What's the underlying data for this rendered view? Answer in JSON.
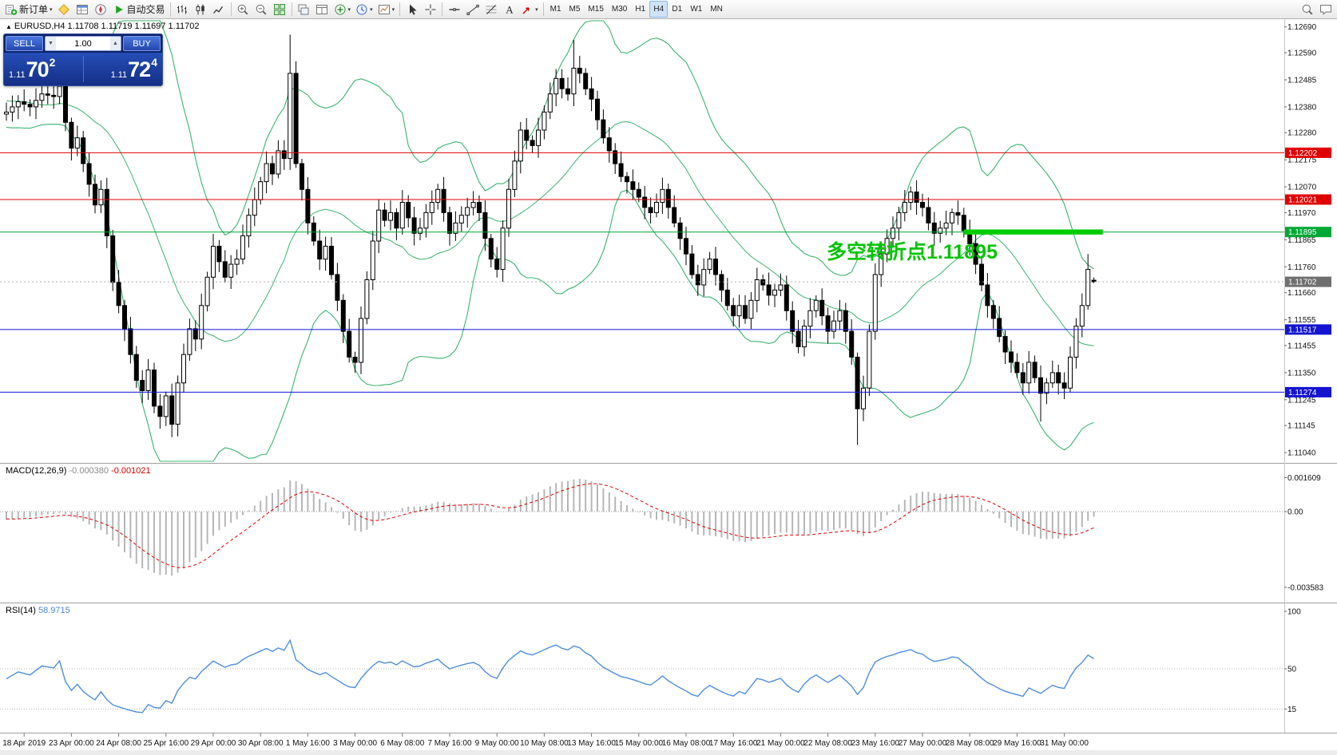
{
  "window": {
    "bg": "#ffffff",
    "toolbar_bg": "#f0f0f0",
    "bottom_strip": "#ececec"
  },
  "toolbar": {
    "groups": [
      {
        "items": [
          {
            "name": "new-order",
            "icon": "new-order",
            "label": "新订单",
            "dropdown": true
          },
          {
            "name": "metaeditor",
            "icon": "metaeditor"
          },
          {
            "name": "market-watch",
            "icon": "market-watch"
          },
          {
            "name": "navigator",
            "icon": "navigator"
          },
          {
            "name": "autotrading",
            "icon": "play",
            "label": "自动交易"
          }
        ]
      },
      {
        "items": [
          {
            "name": "bar-chart-mode",
            "icon": "bar-chart"
          },
          {
            "name": "candlestick-mode",
            "icon": "candlestick"
          },
          {
            "name": "line-chart-mode",
            "icon": "line-chart"
          }
        ]
      },
      {
        "items": [
          {
            "name": "zoom-in",
            "icon": "zoom-in"
          },
          {
            "name": "zoom-out",
            "icon": "zoom-out"
          },
          {
            "name": "tile-windows",
            "icon": "tile"
          }
        ]
      },
      {
        "items": [
          {
            "name": "cascade-windows",
            "icon": "cascade"
          },
          {
            "name": "arrange-windows",
            "icon": "arrange"
          },
          {
            "name": "indicators-list",
            "icon": "indicators",
            "dropdown": true
          },
          {
            "name": "periods-list",
            "icon": "periods",
            "dropdown": true
          },
          {
            "name": "templates",
            "icon": "templates",
            "dropdown": true
          }
        ]
      },
      {
        "items": [
          {
            "name": "cursor-tool",
            "icon": "cursor"
          },
          {
            "name": "crosshair-tool",
            "icon": "crosshair"
          }
        ]
      },
      {
        "items": [
          {
            "name": "horizontal-line-tool",
            "icon": "hline"
          },
          {
            "name": "trendline-tool",
            "icon": "trendline"
          },
          {
            "name": "fibonacci-tool",
            "icon": "fibonacci"
          },
          {
            "name": "text-tool",
            "icon": "text"
          },
          {
            "name": "arrows-tool",
            "icon": "arrows",
            "dropdown": true
          }
        ]
      }
    ],
    "timeframes": [
      {
        "label": "M1"
      },
      {
        "label": "M5"
      },
      {
        "label": "M15"
      },
      {
        "label": "M30"
      },
      {
        "label": "H1"
      },
      {
        "label": "H4",
        "active": true
      },
      {
        "label": "D1"
      },
      {
        "label": "W1"
      },
      {
        "label": "MN"
      }
    ],
    "right_items": [
      {
        "name": "search",
        "icon": "search"
      },
      {
        "name": "chat",
        "icon": "chat"
      }
    ]
  },
  "chart": {
    "symbol_ohlc_line": "EURUSD,H4 1.11708 1.11719 1.11697 1.11702",
    "one_click": {
      "sell_label": "SELL",
      "buy_label": "BUY",
      "volume": "1.00",
      "sell": {
        "big": "1.11",
        "pips": "70",
        "sup": "2"
      },
      "buy": {
        "big": "1.11",
        "pips": "72",
        "sup": "4"
      }
    },
    "annotation": {
      "text": "多空转折点1.11895",
      "color": "#00c400"
    },
    "hlines": [
      {
        "price": 1.12202,
        "color": "#e00000"
      },
      {
        "price": 1.12021,
        "color": "#e00000"
      },
      {
        "price": 1.11895,
        "color": "#00a835"
      },
      {
        "price": 1.11517,
        "color": "#1414d2"
      },
      {
        "price": 1.11274,
        "color": "#1414d2"
      }
    ],
    "current_price": {
      "value": 1.11702,
      "line_color": "#b0b0b0",
      "tag_bg": "#6f6f6f"
    },
    "highlight": {
      "price": 1.11895,
      "start_bar": 162,
      "end_bar": 185.5,
      "color": "#00cc00"
    },
    "price_tags": [
      {
        "value": "1.12202",
        "bg": "#e00000"
      },
      {
        "value": "1.12021",
        "bg": "#e00000"
      },
      {
        "value": "1.11895",
        "bg": "#00a835"
      },
      {
        "value": "1.11702",
        "bg": "#6f6f6f"
      },
      {
        "value": "1.11517",
        "bg": "#1414d2"
      },
      {
        "value": "1.11274",
        "bg": "#1414d2"
      }
    ],
    "y_axis": [
      "1.12690",
      "1.12590",
      "1.12485",
      "1.12380",
      "1.12280",
      "1.12175",
      "1.12070",
      "1.11970",
      "1.11865",
      "1.11760",
      "1.11660",
      "1.11555",
      "1.11455",
      "1.11350",
      "1.11245",
      "1.11145",
      "1.11040"
    ],
    "x_axis": [
      {
        "bar": 3,
        "label": "18 Apr 2019"
      },
      {
        "bar": 11,
        "label": "23 Apr 00:00"
      },
      {
        "bar": 19,
        "label": "24 Apr 08:00"
      },
      {
        "bar": 27,
        "label": "25 Apr 16:00"
      },
      {
        "bar": 35,
        "label": "29 Apr 00:00"
      },
      {
        "bar": 43,
        "label": "30 Apr 08:00"
      },
      {
        "bar": 51,
        "label": "1 May 16:00"
      },
      {
        "bar": 59,
        "label": "3 May 00:00"
      },
      {
        "bar": 67,
        "label": "6 May 08:00"
      },
      {
        "bar": 75,
        "label": "7 May 16:00"
      },
      {
        "bar": 83,
        "label": "9 May 00:00"
      },
      {
        "bar": 91,
        "label": "10 May 08:00"
      },
      {
        "bar": 99,
        "label": "13 May 16:00"
      },
      {
        "bar": 107,
        "label": "15 May 00:00"
      },
      {
        "bar": 115,
        "label": "16 May 08:00"
      },
      {
        "bar": 123,
        "label": "17 May 16:00"
      },
      {
        "bar": 131,
        "label": "21 May 00:00"
      },
      {
        "bar": 139,
        "label": "22 May 08:00"
      },
      {
        "bar": 147,
        "label": "23 May 16:00"
      },
      {
        "bar": 155,
        "label": "27 May 00:00"
      },
      {
        "bar": 163,
        "label": "28 May 08:00"
      },
      {
        "bar": 171,
        "label": "29 May 16:00"
      },
      {
        "bar": 179,
        "label": "31 May 00:00"
      }
    ]
  },
  "macd_panel": {
    "label": "MACD(12,26,9)",
    "value_main": "-0.000380",
    "value_signal": "-0.001021",
    "scale": [
      "0.001609",
      "0.00",
      "-0.003583"
    ],
    "histogram_color": "#b6b6b6",
    "signal_color": "#e00000"
  },
  "rsi_panel": {
    "label": "RSI(14)",
    "value": "58.9715",
    "scale": [
      "100",
      "50",
      "15"
    ],
    "levels": [
      50,
      15
    ],
    "line_color": "#4f8fde"
  },
  "chart_data": {
    "type": "candlestick",
    "symbol": "EURUSD",
    "timeframe": "H4",
    "bars_total": 185,
    "ylim": [
      1.11,
      1.1272
    ],
    "current_bar": {
      "open": 1.11708,
      "high": 1.11719,
      "low": 1.11697,
      "close": 1.11702
    },
    "close_anchors": [
      [
        0,
        1.1236
      ],
      [
        2,
        1.124
      ],
      [
        4,
        1.1238
      ],
      [
        6,
        1.1243
      ],
      [
        8,
        1.1242
      ],
      [
        9,
        1.1246
      ],
      [
        10,
        1.1232
      ],
      [
        11,
        1.1222
      ],
      [
        12,
        1.1226
      ],
      [
        13,
        1.1216
      ],
      [
        15,
        1.12
      ],
      [
        16,
        1.1206
      ],
      [
        17,
        1.1188
      ],
      [
        18,
        1.117
      ],
      [
        19,
        1.1161
      ],
      [
        20,
        1.1152
      ],
      [
        21,
        1.1142
      ],
      [
        22,
        1.1132
      ],
      [
        23,
        1.1128
      ],
      [
        24,
        1.1136
      ],
      [
        25,
        1.1122
      ],
      [
        26,
        1.1118
      ],
      [
        27,
        1.1126
      ],
      [
        28,
        1.1115
      ],
      [
        29,
        1.1131
      ],
      [
        30,
        1.1142
      ],
      [
        31,
        1.1152
      ],
      [
        32,
        1.1148
      ],
      [
        33,
        1.1161
      ],
      [
        34,
        1.1172
      ],
      [
        35,
        1.1184
      ],
      [
        36,
        1.1178
      ],
      [
        37,
        1.1172
      ],
      [
        38,
        1.1177
      ],
      [
        39,
        1.1179
      ],
      [
        40,
        1.1188
      ],
      [
        41,
        1.1196
      ],
      [
        42,
        1.1202
      ],
      [
        43,
        1.1209
      ],
      [
        44,
        1.1216
      ],
      [
        45,
        1.1212
      ],
      [
        46,
        1.1221
      ],
      [
        47,
        1.1218
      ],
      [
        48,
        1.1251
      ],
      [
        49,
        1.1216
      ],
      [
        50,
        1.1206
      ],
      [
        51,
        1.1193
      ],
      [
        52,
        1.1186
      ],
      [
        53,
        1.1179
      ],
      [
        54,
        1.1184
      ],
      [
        55,
        1.1173
      ],
      [
        56,
        1.1163
      ],
      [
        57,
        1.1151
      ],
      [
        58,
        1.1141
      ],
      [
        59,
        1.1139
      ],
      [
        60,
        1.1156
      ],
      [
        61,
        1.1171
      ],
      [
        62,
        1.1186
      ],
      [
        63,
        1.1198
      ],
      [
        64,
        1.1194
      ],
      [
        65,
        1.1197
      ],
      [
        66,
        1.1191
      ],
      [
        67,
        1.1201
      ],
      [
        68,
        1.1195
      ],
      [
        69,
        1.1189
      ],
      [
        70,
        1.1191
      ],
      [
        71,
        1.1197
      ],
      [
        72,
        1.1201
      ],
      [
        73,
        1.1206
      ],
      [
        74,
        1.1197
      ],
      [
        75,
        1.1189
      ],
      [
        76,
        1.1193
      ],
      [
        77,
        1.1196
      ],
      [
        78,
        1.1199
      ],
      [
        79,
        1.1201
      ],
      [
        80,
        1.1197
      ],
      [
        81,
        1.1187
      ],
      [
        82,
        1.1179
      ],
      [
        83,
        1.1175
      ],
      [
        84,
        1.1191
      ],
      [
        85,
        1.1206
      ],
      [
        86,
        1.1217
      ],
      [
        87,
        1.1229
      ],
      [
        88,
        1.1225
      ],
      [
        89,
        1.1223
      ],
      [
        90,
        1.1229
      ],
      [
        91,
        1.1236
      ],
      [
        92,
        1.1243
      ],
      [
        93,
        1.1249
      ],
      [
        94,
        1.1245
      ],
      [
        95,
        1.1243
      ],
      [
        96,
        1.1253
      ],
      [
        97,
        1.1251
      ],
      [
        98,
        1.1245
      ],
      [
        99,
        1.1241
      ],
      [
        100,
        1.1233
      ],
      [
        101,
        1.1226
      ],
      [
        102,
        1.1221
      ],
      [
        103,
        1.1216
      ],
      [
        104,
        1.1211
      ],
      [
        105,
        1.1209
      ],
      [
        106,
        1.1206
      ],
      [
        107,
        1.1203
      ],
      [
        108,
        1.1199
      ],
      [
        109,
        1.1197
      ],
      [
        110,
        1.1201
      ],
      [
        111,
        1.1206
      ],
      [
        112,
        1.1199
      ],
      [
        113,
        1.1193
      ],
      [
        114,
        1.1187
      ],
      [
        115,
        1.1181
      ],
      [
        116,
        1.1173
      ],
      [
        117,
        1.1169
      ],
      [
        118,
        1.1175
      ],
      [
        119,
        1.1179
      ],
      [
        120,
        1.1173
      ],
      [
        121,
        1.1167
      ],
      [
        122,
        1.1161
      ],
      [
        123,
        1.1157
      ],
      [
        124,
        1.1161
      ],
      [
        125,
        1.1156
      ],
      [
        126,
        1.1163
      ],
      [
        127,
        1.1171
      ],
      [
        128,
        1.1169
      ],
      [
        129,
        1.1165
      ],
      [
        130,
        1.1167
      ],
      [
        131,
        1.1169
      ],
      [
        132,
        1.1159
      ],
      [
        133,
        1.1151
      ],
      [
        134,
        1.1145
      ],
      [
        135,
        1.1153
      ],
      [
        136,
        1.1159
      ],
      [
        137,
        1.1163
      ],
      [
        138,
        1.1157
      ],
      [
        139,
        1.1151
      ],
      [
        140,
        1.1155
      ],
      [
        141,
        1.1159
      ],
      [
        142,
        1.1151
      ],
      [
        143,
        1.1141
      ],
      [
        144,
        1.1121
      ],
      [
        145,
        1.1129
      ],
      [
        146,
        1.1151
      ],
      [
        147,
        1.1173
      ],
      [
        148,
        1.1181
      ],
      [
        149,
        1.1187
      ],
      [
        150,
        1.1191
      ],
      [
        151,
        1.1197
      ],
      [
        152,
        1.1201
      ],
      [
        153,
        1.1205
      ],
      [
        154,
        1.1201
      ],
      [
        155,
        1.1199
      ],
      [
        156,
        1.1193
      ],
      [
        157,
        1.1189
      ],
      [
        158,
        1.1191
      ],
      [
        159,
        1.1193
      ],
      [
        160,
        1.1197
      ],
      [
        161,
        1.1196
      ],
      [
        162,
        1.119
      ],
      [
        163,
        1.1185
      ],
      [
        164,
        1.1177
      ],
      [
        165,
        1.1169
      ],
      [
        166,
        1.1161
      ],
      [
        167,
        1.1156
      ],
      [
        168,
        1.1149
      ],
      [
        169,
        1.1143
      ],
      [
        170,
        1.1139
      ],
      [
        171,
        1.1135
      ],
      [
        172,
        1.1131
      ],
      [
        173,
        1.1139
      ],
      [
        174,
        1.1133
      ],
      [
        175,
        1.1127
      ],
      [
        176,
        1.1131
      ],
      [
        177,
        1.1135
      ],
      [
        178,
        1.1131
      ],
      [
        179,
        1.1129
      ],
      [
        180,
        1.1141
      ],
      [
        181,
        1.1153
      ],
      [
        182,
        1.1161
      ],
      [
        183,
        1.1175
      ],
      [
        184,
        1.11702
      ]
    ],
    "wick_extremes": [
      {
        "bar": 9,
        "high": 1.1249
      },
      {
        "bar": 28,
        "low": 1.111
      },
      {
        "bar": 48,
        "high": 1.1266
      },
      {
        "bar": 96,
        "high": 1.1264
      },
      {
        "bar": 144,
        "low": 1.1107
      },
      {
        "bar": 175,
        "low": 1.1116
      },
      {
        "bar": 183,
        "high": 1.1181
      }
    ],
    "indicators": [
      {
        "name": "Bollinger Bands",
        "period": 20,
        "deviation": 2,
        "color": "#3cb371"
      },
      {
        "name": "MACD",
        "fast": 12,
        "slow": 26,
        "signal": 9,
        "values": [
          -0.00038,
          -0.001021
        ]
      },
      {
        "name": "RSI",
        "period": 14,
        "value": 58.9715
      }
    ]
  }
}
